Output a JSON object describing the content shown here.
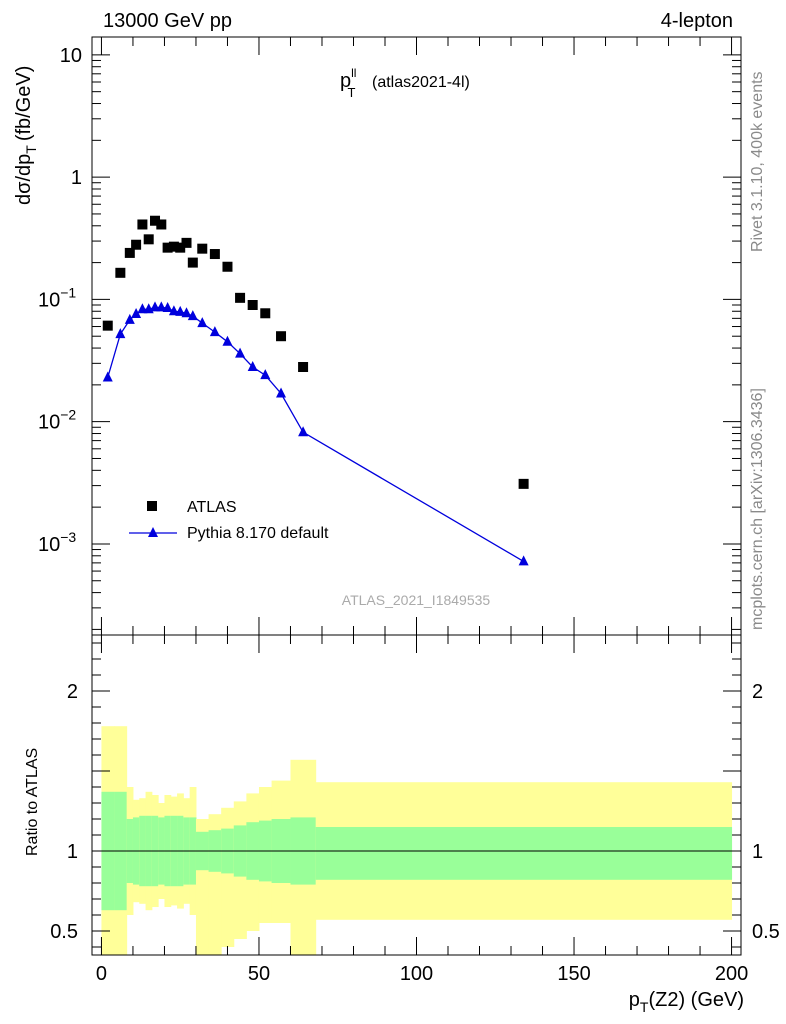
{
  "header": {
    "left": "13000 GeV pp",
    "right": "4-lepton"
  },
  "side_labels": {
    "rivet": "Rivet 3.1.10,  400k events",
    "mcplots": "mcplots.cern.ch [arXiv:1306.3436]"
  },
  "plot_title": {
    "main": "p",
    "sup": "ll",
    "sub": "T",
    "tag": "(atlas2021-4l)"
  },
  "watermark": "ATLAS_2021_I1849535",
  "axes": {
    "top_ylabel": "dσ/dp",
    "top_ylabel_sub": "T",
    "top_ylabel_units": "(fb/GeV)",
    "bottom_ylabel": "Ratio to ATLAS",
    "xlabel_p": "p",
    "xlabel_sub": "T",
    "xlabel_rest": "(Z2) (GeV)"
  },
  "legend": [
    {
      "label": "ATLAS"
    },
    {
      "label": "Pythia 8.170 default"
    }
  ],
  "colors": {
    "data": "#000000",
    "mc": "#0000dd",
    "band_inner": "#99ff99",
    "band_outer": "#ffff99",
    "watermark": "#aaaaaa"
  },
  "chart_data": [
    {
      "type": "scatter",
      "title": "pT(ll) (atlas2021-4l)",
      "xlabel": "pT(Z2) (GeV)",
      "ylabel": "dσ/dpT (fb/GeV)",
      "xscale": "linear",
      "yscale": "log",
      "xlim": [
        -3,
        203
      ],
      "ylim": [
        0.00018,
        14
      ],
      "x_ticks": [
        {
          "v": 0,
          "label": "0"
        },
        {
          "v": 50,
          "label": "50"
        },
        {
          "v": 100,
          "label": "100"
        },
        {
          "v": 150,
          "label": "150"
        },
        {
          "v": 200,
          "label": "200"
        }
      ],
      "y_ticks": [
        {
          "v": 10,
          "label": "10",
          "exp": ""
        },
        {
          "v": 1,
          "label": "1",
          "exp": ""
        },
        {
          "v": 0.1,
          "label": "10",
          "exp": "−1"
        },
        {
          "v": 0.01,
          "label": "10",
          "exp": "−2"
        },
        {
          "v": 0.001,
          "label": "10",
          "exp": "−3"
        }
      ],
      "series": [
        {
          "name": "ATLAS",
          "marker": "square",
          "x": [
            2,
            6,
            9,
            11,
            13,
            15,
            17,
            19,
            21,
            23,
            25,
            27,
            29,
            32,
            36,
            40,
            44,
            48,
            52,
            57,
            64,
            134
          ],
          "y": [
            0.061,
            0.165,
            0.24,
            0.28,
            0.41,
            0.31,
            0.44,
            0.41,
            0.265,
            0.27,
            0.265,
            0.29,
            0.2,
            0.26,
            0.235,
            0.185,
            0.103,
            0.09,
            0.077,
            0.05,
            0.028,
            0.0031
          ]
        },
        {
          "name": "Pythia 8.170 default",
          "marker": "triangle",
          "x": [
            2,
            6,
            9,
            11,
            13,
            15,
            17,
            19,
            21,
            23,
            25,
            27,
            29,
            32,
            36,
            40,
            44,
            48,
            52,
            57,
            64,
            134
          ],
          "y": [
            0.023,
            0.052,
            0.068,
            0.076,
            0.083,
            0.083,
            0.086,
            0.086,
            0.085,
            0.08,
            0.079,
            0.077,
            0.073,
            0.064,
            0.054,
            0.045,
            0.036,
            0.028,
            0.024,
            0.017,
            0.0082,
            0.00072
          ]
        }
      ]
    },
    {
      "type": "area",
      "title": "Ratio to ATLAS",
      "xlabel": "pT(Z2) (GeV)",
      "ylabel": "Ratio to ATLAS",
      "xlim": [
        -3,
        203
      ],
      "ylim": [
        0.35,
        2.35
      ],
      "x_ticks": [
        {
          "v": 0,
          "label": "0"
        },
        {
          "v": 50,
          "label": "50"
        },
        {
          "v": 100,
          "label": "100"
        },
        {
          "v": 150,
          "label": "150"
        },
        {
          "v": 200,
          "label": "200"
        }
      ],
      "y_ticks": [
        {
          "v": 0.5,
          "label": "0.5"
        },
        {
          "v": 1,
          "label": "1"
        },
        {
          "v": 2,
          "label": "2"
        }
      ],
      "reference_line": 1,
      "bands": {
        "edges": [
          0,
          4,
          8,
          10,
          12,
          14,
          16,
          18,
          20,
          22,
          24,
          26,
          28,
          30,
          34,
          38,
          42,
          46,
          50,
          54,
          60,
          68,
          200
        ],
        "outer_low": [
          0.35,
          0.35,
          0.6,
          0.68,
          0.67,
          0.63,
          0.65,
          0.7,
          0.65,
          0.66,
          0.64,
          0.67,
          0.6,
          0.35,
          0.35,
          0.4,
          0.45,
          0.5,
          0.55,
          0.55,
          0.35,
          0.57
        ],
        "inner_low": [
          0.63,
          0.63,
          0.8,
          0.79,
          0.78,
          0.78,
          0.78,
          0.79,
          0.78,
          0.78,
          0.78,
          0.79,
          0.79,
          0.88,
          0.87,
          0.86,
          0.84,
          0.82,
          0.81,
          0.8,
          0.79,
          0.82
        ],
        "inner_high": [
          1.37,
          1.37,
          1.2,
          1.21,
          1.22,
          1.22,
          1.22,
          1.21,
          1.22,
          1.22,
          1.22,
          1.21,
          1.21,
          1.12,
          1.13,
          1.14,
          1.16,
          1.18,
          1.19,
          1.2,
          1.21,
          1.15
        ],
        "outer_high": [
          1.78,
          1.78,
          1.4,
          1.32,
          1.33,
          1.37,
          1.35,
          1.3,
          1.35,
          1.34,
          1.36,
          1.33,
          1.4,
          1.2,
          1.23,
          1.27,
          1.31,
          1.36,
          1.4,
          1.44,
          1.57,
          1.43
        ]
      }
    }
  ]
}
